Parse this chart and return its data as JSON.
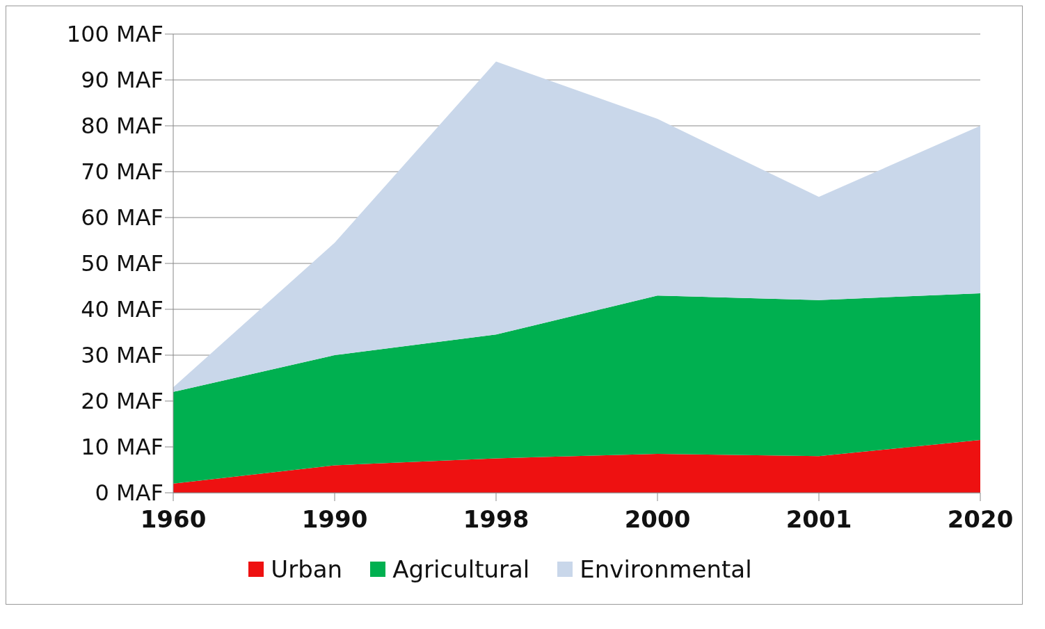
{
  "chart_data": {
    "type": "area",
    "stacked": true,
    "categories": [
      "1960",
      "1990",
      "1998",
      "2000",
      "2001",
      "2020"
    ],
    "series": [
      {
        "name": "Urban",
        "color": "#ee1111",
        "values": [
          2,
          6,
          7.5,
          8.5,
          8,
          11.5
        ]
      },
      {
        "name": "Agricultural",
        "color": "#00b050",
        "values": [
          20,
          24,
          27,
          34.5,
          34,
          32
        ]
      },
      {
        "name": "Environmental",
        "color": "#c9d7ea",
        "values": [
          1,
          24.5,
          59.5,
          38.5,
          22.5,
          36.5
        ]
      }
    ],
    "ylim": [
      0,
      100
    ],
    "yticks": [
      {
        "value": 0,
        "label": "0 MAF"
      },
      {
        "value": 10,
        "label": "10 MAF"
      },
      {
        "value": 20,
        "label": "20 MAF"
      },
      {
        "value": 30,
        "label": "30 MAF"
      },
      {
        "value": 40,
        "label": "40 MAF"
      },
      {
        "value": 50,
        "label": "50 MAF"
      },
      {
        "value": 60,
        "label": "60 MAF"
      },
      {
        "value": 70,
        "label": "70 MAF"
      },
      {
        "value": 80,
        "label": "80 MAF"
      },
      {
        "value": 90,
        "label": "90 MAF"
      },
      {
        "value": 100,
        "label": "100 MAF"
      }
    ],
    "grid": "y",
    "legend": "bottom"
  }
}
